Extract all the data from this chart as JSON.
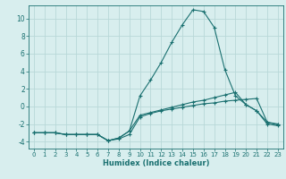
{
  "xlabel": "Humidex (Indice chaleur)",
  "x": [
    0,
    1,
    2,
    3,
    4,
    5,
    6,
    7,
    8,
    9,
    10,
    11,
    12,
    13,
    14,
    15,
    16,
    17,
    18,
    19,
    20,
    21,
    22,
    23
  ],
  "line1": [
    -3,
    -3,
    -3,
    -3.2,
    -3.2,
    -3.2,
    -3.2,
    -3.9,
    -3.7,
    -3.2,
    -1.2,
    -0.8,
    -0.5,
    -0.3,
    -0.1,
    0.1,
    0.3,
    0.4,
    0.6,
    0.7,
    0.8,
    0.9,
    -1.8,
    -2.0
  ],
  "line2": [
    -3,
    -3,
    -3,
    -3.2,
    -3.2,
    -3.2,
    -3.2,
    -3.9,
    -3.6,
    -2.8,
    1.2,
    3.0,
    5.0,
    7.3,
    9.3,
    11.0,
    10.8,
    9.0,
    4.2,
    1.2,
    0.2,
    -0.5,
    -2.0,
    -2.2
  ],
  "line3": [
    -3,
    -3,
    -3,
    -3.2,
    -3.2,
    -3.2,
    -3.2,
    -3.9,
    -3.6,
    -2.8,
    -1.0,
    -0.7,
    -0.4,
    -0.1,
    0.2,
    0.5,
    0.7,
    1.0,
    1.3,
    1.6,
    0.2,
    -0.5,
    -1.8,
    -2.1
  ],
  "line_color": "#1a7070",
  "bg_color": "#d8eeee",
  "grid_color": "#b8d8d8",
  "ylim": [
    -4.8,
    11.5
  ],
  "xlim": [
    -0.5,
    23.5
  ],
  "yticks": [
    -4,
    -2,
    0,
    2,
    4,
    6,
    8,
    10
  ],
  "xticks": [
    0,
    1,
    2,
    3,
    4,
    5,
    6,
    7,
    8,
    9,
    10,
    11,
    12,
    13,
    14,
    15,
    16,
    17,
    18,
    19,
    20,
    21,
    22,
    23
  ]
}
